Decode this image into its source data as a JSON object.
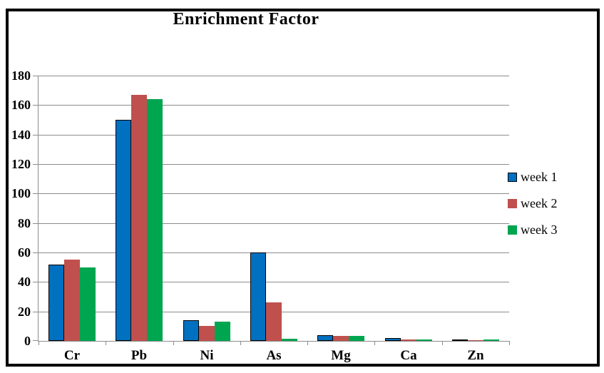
{
  "chart_data": {
    "type": "bar",
    "title": "Enrichment Factor",
    "categories": [
      "Cr",
      "Pb",
      "Ni",
      "As",
      "Mg",
      "Ca",
      "Zn"
    ],
    "series": [
      {
        "name": "week 1",
        "color": "#0070C0",
        "outline": "#000000",
        "values": [
          52,
          150,
          14,
          60,
          4,
          2,
          1
        ]
      },
      {
        "name": "week 2",
        "color": "#C0504D",
        "outline": null,
        "values": [
          55,
          167,
          10,
          26,
          3.5,
          1,
          0.5
        ]
      },
      {
        "name": "week 3",
        "color": "#00A550",
        "outline": null,
        "values": [
          50,
          164,
          13,
          1.5,
          3.5,
          1.2,
          1
        ]
      }
    ],
    "xlabel": "",
    "ylabel": "",
    "ylim": [
      0,
      180
    ],
    "yticks": [
      0,
      20,
      40,
      60,
      80,
      100,
      120,
      140,
      160,
      180
    ],
    "grid": true,
    "legend_position": "right",
    "colors": {
      "gridline": "#8C8C8C",
      "axis": "#8C8C8C",
      "frame_border": "#000000",
      "text": "#000000",
      "background": "#FFFFFF"
    }
  }
}
